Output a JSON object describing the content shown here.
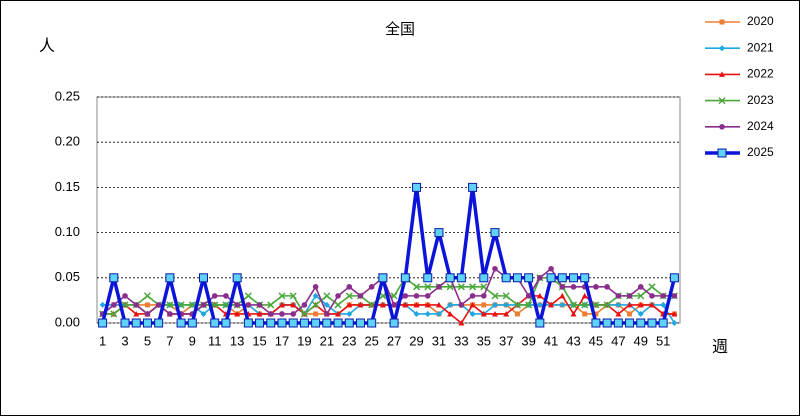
{
  "chart_data": {
    "type": "line",
    "title": "全国",
    "y_label": "人",
    "x_label": "週",
    "categories": [
      1,
      null,
      3,
      null,
      5,
      null,
      7,
      null,
      9,
      null,
      11,
      null,
      13,
      null,
      15,
      null,
      17,
      null,
      19,
      null,
      21,
      null,
      23,
      null,
      25,
      null,
      27,
      null,
      29,
      null,
      31,
      null,
      33,
      null,
      35,
      null,
      37,
      null,
      39,
      null,
      41,
      null,
      43,
      null,
      45,
      null,
      47,
      null,
      49,
      null,
      51,
      null
    ],
    "ylim": [
      0,
      0.25
    ],
    "yticks": [
      {
        "value": 0,
        "label": "0.00"
      },
      {
        "value": 0.05,
        "label": "0.05"
      },
      {
        "value": 0.1,
        "label": "0.10"
      },
      {
        "value": 0.15,
        "label": "0.15"
      },
      {
        "value": 0.2,
        "label": "0.20"
      },
      {
        "value": 0.25,
        "label": "0.25"
      }
    ],
    "grid": true,
    "legend": "right",
    "series": [
      {
        "name": "2020",
        "color": "#ed7d31",
        "marker": "square",
        "values": [
          0.01,
          0.02,
          0.02,
          0.02,
          0.02,
          0.02,
          0.02,
          0.01,
          0.02,
          0.02,
          0.02,
          0.02,
          0.01,
          0.02,
          0.01,
          0.01,
          0.02,
          0.02,
          0.01,
          0.01,
          0.01,
          0.01,
          0.02,
          0.02,
          0.02,
          0.02,
          0.02,
          0.02,
          0.02,
          0.02,
          0.01,
          0.02,
          0.02,
          0.02,
          0.02,
          0.02,
          0.02,
          0.01,
          0.02,
          0.02,
          0.02,
          0.02,
          0.02,
          0.01,
          0.01,
          0.02,
          0.02,
          0.01,
          0.02,
          0.02,
          0.01,
          0.01
        ]
      },
      {
        "name": "2021",
        "color": "#1ea7e1",
        "marker": "diamond",
        "values": [
          0.02,
          0.02,
          0.02,
          0.02,
          0.01,
          0.02,
          0.02,
          0.02,
          0.02,
          0.01,
          0.02,
          0.02,
          0.02,
          0.02,
          0.01,
          0.01,
          0.02,
          0.02,
          0.01,
          0.03,
          0.02,
          0.01,
          0.01,
          0.02,
          0.02,
          0.02,
          0.02,
          0.02,
          0.01,
          0.01,
          0.01,
          0.02,
          0.02,
          0.01,
          0.01,
          0.02,
          0.02,
          0.02,
          0.02,
          0.02,
          0.02,
          0.02,
          0.02,
          0.02,
          0.02,
          0.02,
          0.02,
          0.02,
          0.01,
          0.02,
          0.02,
          0
        ]
      },
      {
        "name": "2022",
        "color": "#e81010",
        "marker": "triangle",
        "values": [
          0.01,
          0.01,
          0.02,
          0.01,
          0.01,
          0.02,
          0.01,
          0.01,
          0.01,
          0.02,
          0.02,
          0.01,
          0.01,
          0.01,
          0.01,
          0.01,
          0.02,
          0.02,
          0.01,
          0.02,
          0.01,
          0.01,
          0.02,
          0.02,
          0.02,
          0.02,
          0.02,
          0.02,
          0.02,
          0.02,
          0.02,
          0.01,
          0,
          0.02,
          0.01,
          0.01,
          0.01,
          0.02,
          0.03,
          0.03,
          0.02,
          0.03,
          0.01,
          0.03,
          0.02,
          0.02,
          0.01,
          0.02,
          0.02,
          0.02,
          0.01,
          0.01
        ]
      },
      {
        "name": "2023",
        "color": "#4aa83a",
        "marker": "x",
        "values": [
          0.01,
          0.01,
          0.02,
          0.02,
          0.03,
          0.02,
          0.02,
          0.02,
          0.02,
          0.02,
          0.02,
          0.02,
          0.02,
          0.03,
          0.02,
          0.02,
          0.03,
          0.03,
          0.01,
          0.02,
          0.03,
          0.02,
          0.03,
          0.03,
          0.02,
          0.03,
          0.03,
          0.05,
          0.04,
          0.04,
          0.04,
          0.04,
          0.04,
          0.04,
          0.04,
          0.03,
          0.03,
          0.02,
          0.02,
          0.05,
          0.05,
          0.04,
          0.02,
          0.02,
          0.02,
          0.02,
          0.03,
          0.03,
          0.03,
          0.04,
          0.03,
          0.03
        ]
      },
      {
        "name": "2024",
        "color": "#8a2e8c",
        "marker": "circle",
        "values": [
          0.01,
          0.02,
          0.03,
          0.02,
          0.01,
          0.02,
          0.01,
          0.01,
          0.01,
          0.02,
          0.03,
          0.03,
          0.02,
          0.02,
          0.02,
          0.01,
          0.01,
          0.01,
          0.02,
          0.04,
          0.01,
          0.03,
          0.04,
          0.03,
          0.04,
          0.05,
          0.02,
          0.03,
          0.03,
          0.03,
          0.04,
          0.05,
          0.02,
          0.03,
          0.03,
          0.06,
          0.05,
          0.05,
          0.03,
          0.05,
          0.06,
          0.04,
          0.04,
          0.04,
          0.04,
          0.04,
          0.03,
          0.03,
          0.04,
          0.03,
          0.03,
          0.03
        ]
      },
      {
        "name": "2025",
        "color": "#0b14d8",
        "marker": "bigsquare",
        "values": [
          0,
          0.05,
          0,
          0,
          0,
          0,
          0.05,
          0,
          0,
          0.05,
          0,
          0,
          0.05,
          0,
          0,
          0,
          0,
          0,
          0,
          0,
          0,
          0,
          0,
          0,
          0,
          0.05,
          0,
          0.05,
          0.15,
          0.05,
          0.1,
          0.05,
          0.05,
          0.15,
          0.05,
          0.1,
          0.05,
          0.05,
          0.05,
          0,
          0.05,
          0.05,
          0.05,
          0.05,
          0,
          0,
          0,
          0,
          0,
          0,
          0,
          0.05
        ]
      }
    ]
  }
}
